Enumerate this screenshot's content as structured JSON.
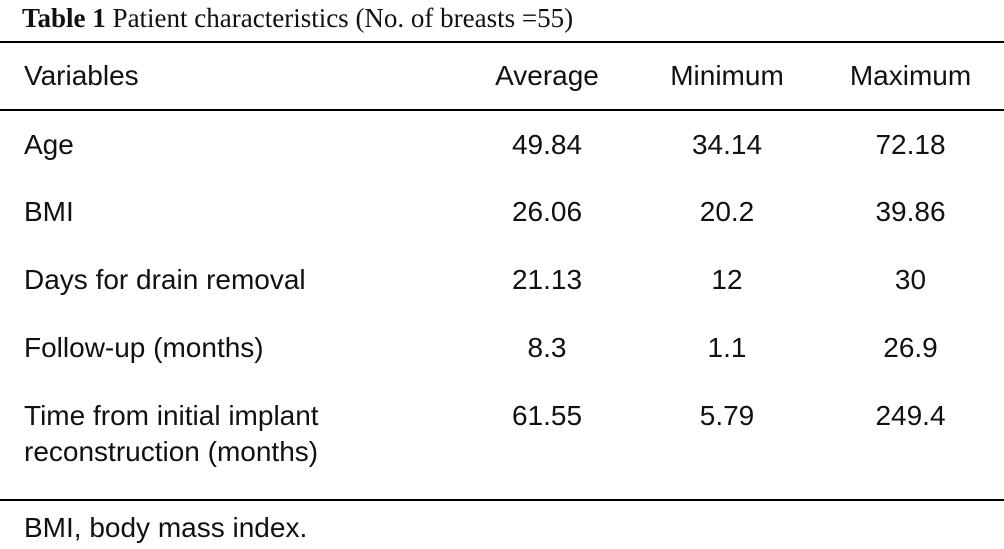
{
  "table": {
    "title_label": "Table 1",
    "title_text": "Patient characteristics (No. of breasts =55)",
    "columns": [
      "Variables",
      "Average",
      "Minimum",
      "Maximum"
    ],
    "rows": [
      {
        "variable": "Age",
        "average": "49.84",
        "minimum": "34.14",
        "maximum": "72.18"
      },
      {
        "variable": "BMI",
        "average": "26.06",
        "minimum": "20.2",
        "maximum": "39.86"
      },
      {
        "variable": "Days for drain removal",
        "average": "21.13",
        "minimum": "12",
        "maximum": "30"
      },
      {
        "variable": "Follow-up (months)",
        "average": "8.3",
        "minimum": "1.1",
        "maximum": "26.9"
      },
      {
        "variable_line1": "Time from initial implant",
        "variable_line2": "reconstruction (months)",
        "average": "61.55",
        "minimum": "5.79",
        "maximum": "249.4"
      }
    ],
    "footnote": "BMI, body mass index."
  }
}
